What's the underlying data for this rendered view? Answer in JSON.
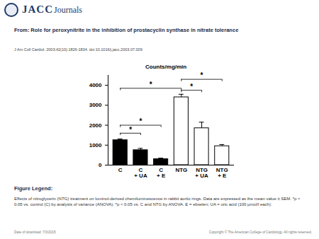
{
  "header": {
    "logo_text": [
      "JACC",
      "Journals"
    ]
  },
  "title": "From: Role for peroxynitrite in the inhibition of prostacyclin synthase in nitrate tolerance",
  "citation": "J Am Coll Cardiol. 2003;42(10):1826-1834. doi:10.1016/j.jacc.2003.07.009",
  "chart_data": {
    "type": "bar",
    "y_label": "Counts/mg/min",
    "categories": [
      "C",
      "C\n+ UA",
      "C\n+ E",
      "NTG",
      "NTG\n+ UA",
      "NTG\n+ E"
    ],
    "values": [
      1250,
      750,
      300,
      3400,
      1850,
      950
    ],
    "errors": [
      60,
      90,
      50,
      150,
      300,
      80
    ],
    "colors": [
      "#000000",
      "#000000",
      "#000000",
      "#ffffff",
      "#ffffff",
      "#ffffff"
    ],
    "ylim": [
      0,
      4500
    ],
    "yticks": [
      0,
      1000,
      2000,
      3000,
      4000
    ],
    "brackets": [
      {
        "from": 0,
        "to": 1,
        "y": 1600,
        "label": "*"
      },
      {
        "from": 0,
        "to": 2,
        "y": 2000,
        "label": "*"
      },
      {
        "from": 0,
        "to": 3,
        "y": 3850,
        "label": "*"
      },
      {
        "from": 3,
        "to": 4,
        "y": 3750,
        "label": "*"
      },
      {
        "from": 3,
        "to": 5,
        "y": 4300,
        "label": "*"
      }
    ]
  },
  "figure_legend": {
    "heading": "Figure Legend:",
    "text": "Effects of nitroglycerin (NTG) treatment on luminol-derived chemiluminescence in rabbit aortic rings. Data are expressed as the mean value ± SEM. *p < 0.05 vs. control (C) by analysis of variance (ANOVA). *p < 0.05 vs. C and NTG by ANOVA. E = ebselen; UA = uric acid (100 μmol/l each)."
  },
  "footer": {
    "date": "Date of download: 7/3/2015",
    "copyright": "Copyright © The American College of Cardiology. All rights reserved."
  }
}
